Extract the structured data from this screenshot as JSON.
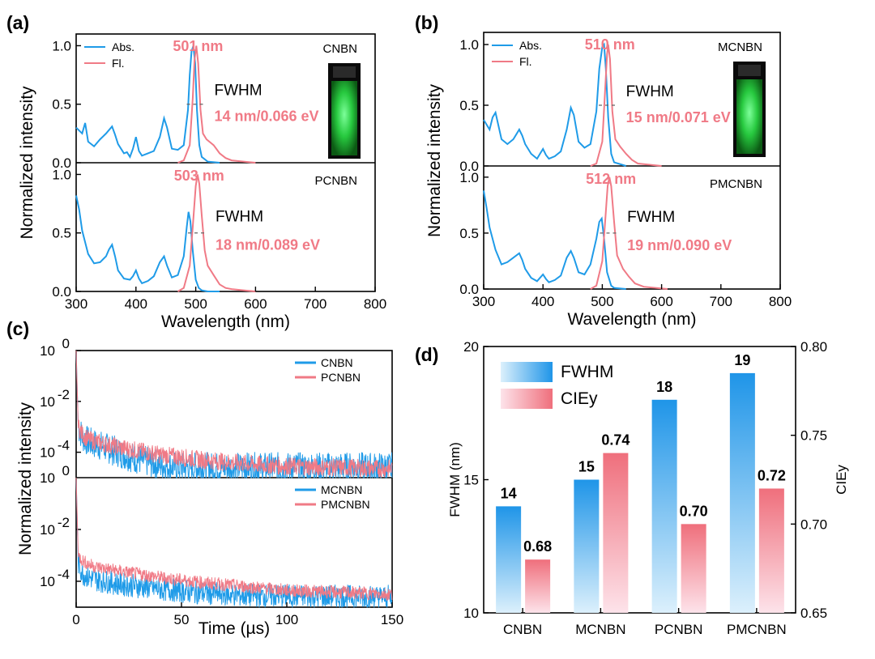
{
  "colors": {
    "abs": "#1f9be8",
    "fl": "#f07a86",
    "fwhm_bar": "#2e9be8",
    "ciey_bar": "#ef6f7c"
  },
  "panels": {
    "a": {
      "label": "(a)"
    },
    "b": {
      "label": "(b)"
    },
    "c": {
      "label": "(c)"
    },
    "d": {
      "label": "(d)"
    }
  },
  "chart_data": [
    {
      "id": "a",
      "type": "line",
      "xlabel": "Wavelength (nm)",
      "ylabel": "Normalized intensity",
      "xlim": [
        300,
        800
      ],
      "xticks": [
        "300",
        "400",
        "500",
        "600",
        "700",
        "800"
      ],
      "ylim": [
        0,
        1.1
      ],
      "yticks": [
        "0.0",
        "0.5",
        "1.0"
      ],
      "legend": [
        "Abs.",
        "Fl."
      ],
      "subplots": [
        {
          "compound": "CNBN",
          "peak_label": "501 nm",
          "fwhm_label": "FWHM",
          "fwhm_value": "14 nm/0.066 eV",
          "inset": "green emission vial",
          "series": [
            {
              "name": "Abs.",
              "x": [
                300,
                310,
                315,
                320,
                330,
                340,
                350,
                360,
                365,
                370,
                380,
                385,
                390,
                395,
                400,
                405,
                410,
                420,
                430,
                440,
                447,
                452,
                460,
                470,
                480,
                487,
                490,
                493,
                496,
                499,
                502,
                506,
                510,
                520,
                540
              ],
              "y": [
                0.3,
                0.25,
                0.34,
                0.18,
                0.14,
                0.2,
                0.25,
                0.31,
                0.24,
                0.16,
                0.08,
                0.09,
                0.05,
                0.12,
                0.22,
                0.1,
                0.06,
                0.08,
                0.1,
                0.22,
                0.38,
                0.3,
                0.12,
                0.11,
                0.15,
                0.45,
                0.75,
                0.95,
                1.0,
                0.85,
                0.45,
                0.15,
                0.05,
                0.01,
                0.0
              ]
            },
            {
              "name": "Fl.",
              "x": [
                470,
                480,
                490,
                495,
                498,
                501,
                504,
                508,
                512,
                518,
                525,
                530,
                540,
                550,
                560,
                580,
                600
              ],
              "y": [
                0.0,
                0.02,
                0.15,
                0.55,
                0.88,
                1.0,
                0.85,
                0.45,
                0.25,
                0.2,
                0.17,
                0.15,
                0.08,
                0.04,
                0.02,
                0.01,
                0.0
              ]
            }
          ]
        },
        {
          "compound": "PCNBN",
          "peak_label": "503 nm",
          "fwhm_label": "FWHM",
          "fwhm_value": "18 nm/0.089 eV",
          "series": [
            {
              "name": "Abs.",
              "x": [
                300,
                305,
                310,
                320,
                330,
                340,
                350,
                355,
                360,
                365,
                370,
                380,
                390,
                395,
                400,
                405,
                410,
                420,
                430,
                440,
                447,
                452,
                460,
                470,
                480,
                485,
                488,
                491,
                495,
                500,
                505,
                510,
                520,
                540
              ],
              "y": [
                0.82,
                0.7,
                0.52,
                0.32,
                0.24,
                0.25,
                0.3,
                0.36,
                0.4,
                0.3,
                0.18,
                0.11,
                0.1,
                0.13,
                0.18,
                0.11,
                0.07,
                0.09,
                0.13,
                0.25,
                0.3,
                0.22,
                0.12,
                0.14,
                0.3,
                0.55,
                0.68,
                0.6,
                0.35,
                0.1,
                0.03,
                0.01,
                0.0,
                0.0
              ]
            },
            {
              "name": "Fl.",
              "x": [
                470,
                480,
                490,
                495,
                500,
                503,
                506,
                510,
                515,
                520,
                530,
                540,
                550,
                560,
                580,
                600
              ],
              "y": [
                0.0,
                0.03,
                0.22,
                0.55,
                0.9,
                1.0,
                0.92,
                0.65,
                0.35,
                0.22,
                0.14,
                0.06,
                0.03,
                0.02,
                0.01,
                0.0
              ]
            }
          ]
        }
      ]
    },
    {
      "id": "b",
      "type": "line",
      "xlabel": "Wavelength (nm)",
      "ylabel": "Normalized intensity",
      "xlim": [
        300,
        800
      ],
      "xticks": [
        "300",
        "400",
        "500",
        "600",
        "700",
        "800"
      ],
      "ylim": [
        0,
        1.1
      ],
      "yticks": [
        "0.0",
        "0.5",
        "1.0"
      ],
      "legend": [
        "Abs.",
        "Fl."
      ],
      "subplots": [
        {
          "compound": "MCNBN",
          "peak_label": "510 nm",
          "fwhm_label": "FWHM",
          "fwhm_value": "15 nm/0.071 eV",
          "inset": "green emission vial",
          "series": [
            {
              "name": "Abs.",
              "x": [
                300,
                310,
                315,
                320,
                330,
                340,
                350,
                360,
                365,
                370,
                380,
                390,
                395,
                400,
                405,
                410,
                420,
                430,
                440,
                447,
                452,
                460,
                470,
                480,
                490,
                495,
                500,
                503,
                506,
                510,
                515,
                520,
                540
              ],
              "y": [
                0.38,
                0.3,
                0.4,
                0.44,
                0.22,
                0.18,
                0.22,
                0.3,
                0.25,
                0.18,
                0.1,
                0.06,
                0.1,
                0.14,
                0.09,
                0.06,
                0.08,
                0.12,
                0.3,
                0.48,
                0.42,
                0.2,
                0.15,
                0.18,
                0.45,
                0.8,
                0.98,
                1.0,
                0.8,
                0.4,
                0.1,
                0.03,
                0.0
              ]
            },
            {
              "name": "Fl.",
              "x": [
                480,
                490,
                500,
                505,
                508,
                510,
                513,
                517,
                522,
                530,
                540,
                550,
                560,
                580,
                600
              ],
              "y": [
                0.0,
                0.02,
                0.2,
                0.65,
                0.92,
                1.0,
                0.88,
                0.45,
                0.22,
                0.16,
                0.1,
                0.05,
                0.02,
                0.01,
                0.0
              ]
            }
          ]
        },
        {
          "compound": "PMCNBN",
          "peak_label": "512 nm",
          "fwhm_label": "FWHM",
          "fwhm_value": "19 nm/0.090 eV",
          "series": [
            {
              "name": "Abs.",
              "x": [
                300,
                305,
                310,
                320,
                330,
                340,
                350,
                360,
                365,
                370,
                380,
                390,
                395,
                400,
                405,
                410,
                420,
                430,
                440,
                447,
                452,
                460,
                470,
                480,
                490,
                495,
                499,
                503,
                508,
                515,
                520,
                540
              ],
              "y": [
                0.88,
                0.72,
                0.55,
                0.35,
                0.22,
                0.24,
                0.28,
                0.32,
                0.26,
                0.18,
                0.1,
                0.07,
                0.1,
                0.13,
                0.09,
                0.06,
                0.08,
                0.12,
                0.28,
                0.34,
                0.28,
                0.15,
                0.13,
                0.22,
                0.45,
                0.6,
                0.63,
                0.45,
                0.15,
                0.03,
                0.01,
                0.0
              ]
            },
            {
              "name": "Fl.",
              "x": [
                480,
                490,
                500,
                505,
                509,
                512,
                515,
                520,
                525,
                535,
                545,
                555,
                570,
                590,
                610
              ],
              "y": [
                0.0,
                0.03,
                0.25,
                0.62,
                0.92,
                1.0,
                0.92,
                0.6,
                0.3,
                0.18,
                0.11,
                0.05,
                0.02,
                0.01,
                0.0
              ]
            }
          ]
        }
      ]
    },
    {
      "id": "c",
      "type": "line",
      "xlabel": "Time (µs)",
      "ylabel": "Normalized intensity",
      "xlim": [
        0,
        150
      ],
      "xticks": [
        "0",
        "50",
        "100",
        "150"
      ],
      "yscale": "log",
      "ylim": [
        1e-05,
        1
      ],
      "ytick_exponents": [
        "0",
        "-2",
        "-4"
      ],
      "subplots": [
        {
          "legend": [
            "CNBN",
            "PCNBN"
          ],
          "series": [
            {
              "name": "CNBN",
              "x": [
                0,
                1,
                3,
                6,
                10,
                20,
                30,
                40,
                50,
                150
              ],
              "log10y": [
                0,
                -3.0,
                -3.4,
                -3.6,
                -3.7,
                -4.0,
                -4.3,
                -4.5,
                -4.6,
                -4.6
              ],
              "noise": 0.6
            },
            {
              "name": "PCNBN",
              "x": [
                0,
                1,
                3,
                6,
                10,
                20,
                40,
                60,
                80,
                100,
                150
              ],
              "log10y": [
                0,
                -3.0,
                -3.3,
                -3.5,
                -3.6,
                -3.8,
                -4.1,
                -4.3,
                -4.45,
                -4.55,
                -4.65
              ],
              "noise": 0.35
            }
          ]
        },
        {
          "legend": [
            "MCNBN",
            "PMCNBN"
          ],
          "series": [
            {
              "name": "MCNBN",
              "x": [
                0,
                1,
                3,
                6,
                10,
                20,
                40,
                60,
                80,
                150
              ],
              "log10y": [
                0,
                -3.3,
                -3.7,
                -3.85,
                -3.95,
                -4.1,
                -4.3,
                -4.45,
                -4.55,
                -4.6
              ],
              "noise": 0.45
            },
            {
              "name": "PMCNBN",
              "x": [
                0,
                1,
                3,
                6,
                10,
                20,
                40,
                60,
                80,
                100,
                150
              ],
              "log10y": [
                0,
                -3.0,
                -3.2,
                -3.35,
                -3.45,
                -3.6,
                -3.85,
                -4.05,
                -4.2,
                -4.35,
                -4.5
              ],
              "noise": 0.25
            }
          ]
        }
      ]
    },
    {
      "id": "d",
      "type": "bar",
      "categories": [
        "CNBN",
        "MCNBN",
        "PCNBN",
        "PMCNBN"
      ],
      "ylabel": "FWHM (nm)",
      "ylabel_right": "CIEy",
      "ylim": [
        10,
        20
      ],
      "yticks": [
        "10",
        "15",
        "20"
      ],
      "ylim_right": [
        0.65,
        0.8
      ],
      "yticks_right": [
        "0.65",
        "0.70",
        "0.75",
        "0.80"
      ],
      "legend": [
        "FWHM",
        "CIEy"
      ],
      "series": [
        {
          "name": "FWHM",
          "values": [
            14,
            15,
            18,
            19
          ],
          "labels": [
            "14",
            "15",
            "18",
            "19"
          ]
        },
        {
          "name": "CIEy",
          "values": [
            0.68,
            0.74,
            0.7,
            0.72
          ],
          "labels": [
            "0.68",
            "0.74",
            "0.70",
            "0.72"
          ]
        }
      ]
    }
  ]
}
